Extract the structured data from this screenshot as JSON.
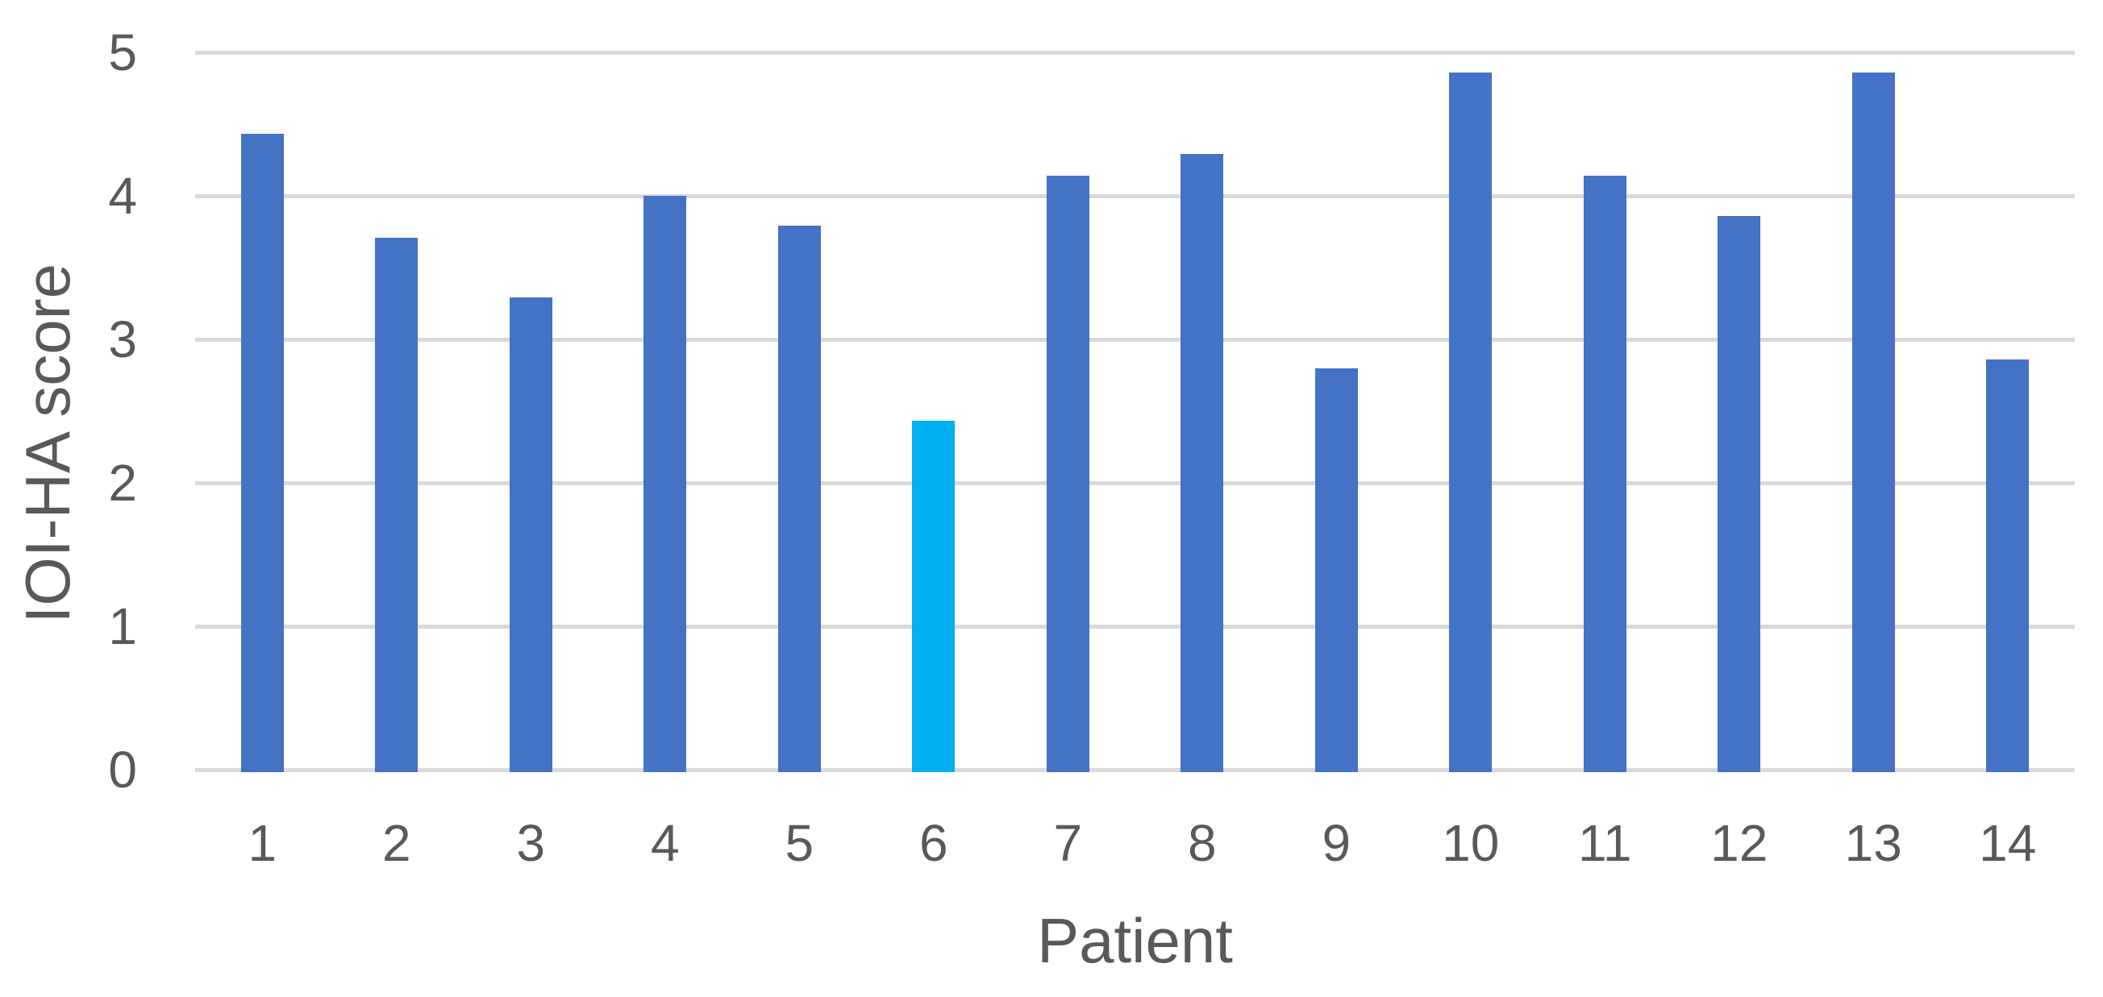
{
  "chart_data": {
    "type": "bar",
    "title": "",
    "xlabel": "Patient",
    "ylabel": "IOI-HA score",
    "categories": [
      "1",
      "2",
      "3",
      "4",
      "5",
      "6",
      "7",
      "8",
      "9",
      "10",
      "11",
      "12",
      "13",
      "14"
    ],
    "values": [
      4.43,
      3.71,
      3.29,
      4.0,
      3.79,
      2.43,
      4.14,
      4.29,
      2.8,
      4.86,
      4.14,
      3.86,
      4.86,
      2.86
    ],
    "highlighted_category": "6",
    "ylim": [
      0,
      5
    ],
    "yticks": [
      0,
      1,
      2,
      3,
      4,
      5
    ],
    "grid": "horizontal",
    "legend": "none",
    "colors": {
      "bar": "#4472C4",
      "highlighted_bar": "#00B0F0",
      "gridline": "#D9D9D9",
      "axis_text": "#595959",
      "background": "#FFFFFF"
    }
  }
}
